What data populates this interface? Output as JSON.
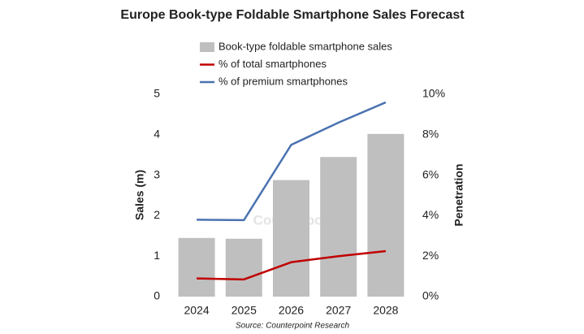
{
  "chart_data": {
    "type": "bar",
    "title": "Europe Book-type Foldable Smartphone Sales Forecast",
    "ylabel": "Sales (m)",
    "y2label": "Penetration",
    "source": "Source: Counterpoint Research",
    "watermark": "Counterpoint",
    "categories": [
      "2024",
      "2025",
      "2026",
      "2027",
      "2028"
    ],
    "series": [
      {
        "name": "Book-type foldable smartphone sales",
        "type": "bar",
        "color": "#bfbfbf",
        "values": [
          1.45,
          1.43,
          2.88,
          3.45,
          4.02
        ]
      },
      {
        "name": "% of total smartphones",
        "type": "line",
        "axis": "y2",
        "color": "#c00000",
        "values": [
          0.9,
          0.85,
          1.7,
          2.0,
          2.25
        ]
      },
      {
        "name": "% of premium smartphones",
        "type": "line",
        "axis": "y2",
        "color": "#4a72b0",
        "values": [
          3.8,
          3.78,
          7.5,
          8.6,
          9.6
        ]
      }
    ],
    "ylim": [
      0,
      5
    ],
    "yticks": [
      0,
      1,
      2,
      3,
      4,
      5
    ],
    "y2lim": [
      0,
      10
    ],
    "y2ticks": [
      {
        "value": 0,
        "label": "0%"
      },
      {
        "value": 2,
        "label": "2%"
      },
      {
        "value": 4,
        "label": "4%"
      },
      {
        "value": 6,
        "label": "6%"
      },
      {
        "value": 8,
        "label": "8%"
      },
      {
        "value": 10,
        "label": "10%"
      }
    ],
    "grid": false
  }
}
